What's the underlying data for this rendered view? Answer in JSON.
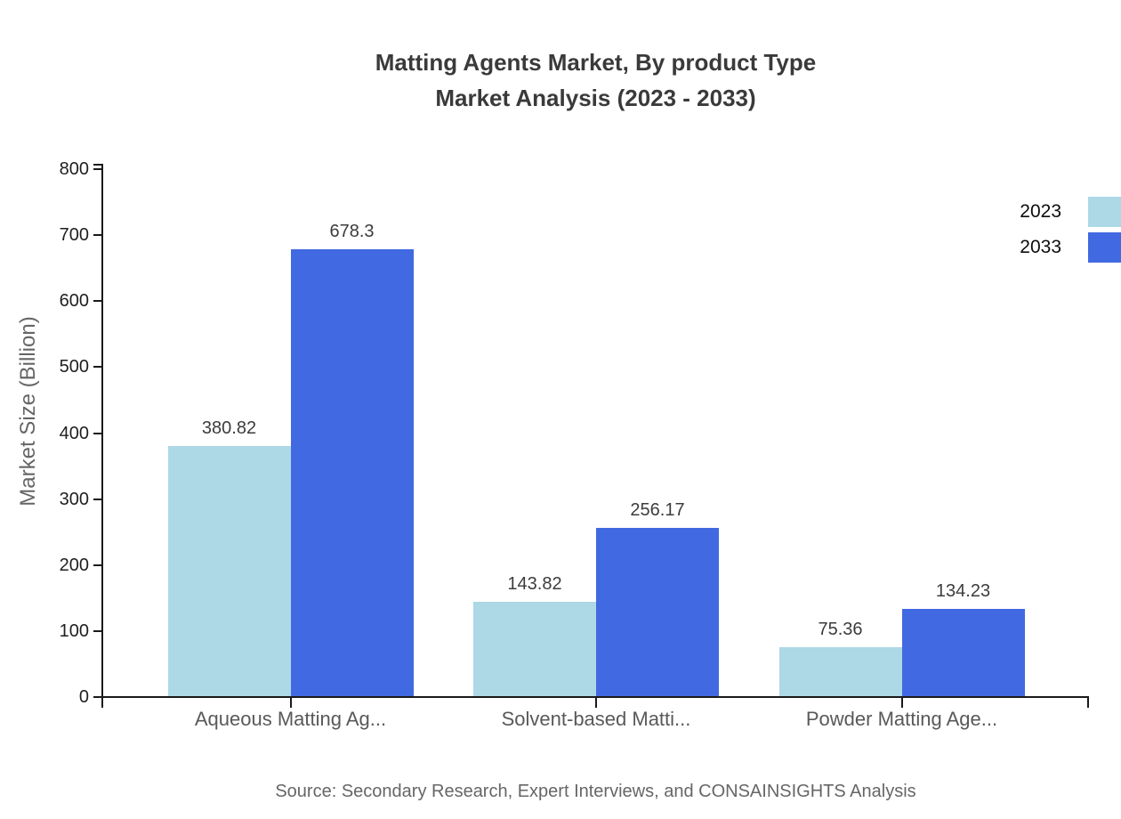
{
  "title": {
    "line1": "Matting Agents Market, By product Type",
    "line2": "Market Analysis (2023 - 2033)"
  },
  "y_axis_title": "Market Size (Billion)",
  "source": "Source: Secondary Research, Expert Interviews, and CONSAINSIGHTS Analysis",
  "legend": [
    {
      "label": "2023",
      "color": "#ADD8E6"
    },
    {
      "label": "2033",
      "color": "#4169E1"
    }
  ],
  "colors": {
    "series_2023": "#ADD8E6",
    "series_2033": "#4169E1",
    "axis": "#1a1a1a",
    "title_text": "#3a3a3a",
    "category_text": "#595959",
    "muted_text": "#666666"
  },
  "chart_data": {
    "type": "bar",
    "title": "Matting Agents Market, By product Type Market Analysis (2023 - 2033)",
    "categories": [
      "Aqueous Matting Ag...",
      "Solvent-based Matti...",
      "Powder Matting Age..."
    ],
    "series": [
      {
        "name": "2023",
        "color": "#ADD8E6",
        "values": [
          380.82,
          143.82,
          75.36
        ]
      },
      {
        "name": "2033",
        "color": "#4169E1",
        "values": [
          678.3,
          256.17,
          134.23
        ]
      }
    ],
    "xlabel": "",
    "ylabel": "Market Size (Billion)",
    "ylim": [
      0,
      800
    ],
    "ytick_step": 100,
    "grid": false,
    "legend_position": "top-right",
    "value_labels": true
  }
}
